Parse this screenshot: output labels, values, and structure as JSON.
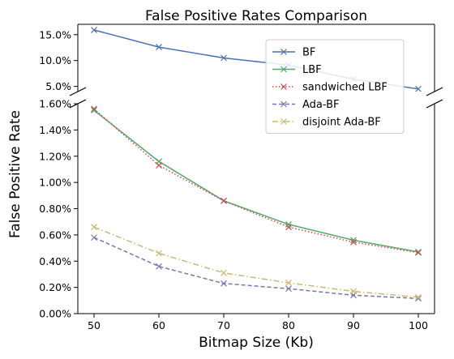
{
  "chart_data": {
    "type": "line",
    "title": "False Positive Rates Comparison",
    "xlabel": "Bitmap Size (Kb)",
    "ylabel": "False Positive Rate",
    "x": [
      50,
      60,
      70,
      80,
      90,
      100
    ],
    "xlim": [
      47.5,
      102.5
    ],
    "x_ticks": [
      "50",
      "60",
      "70",
      "80",
      "90",
      "100"
    ],
    "axis_break": true,
    "upper_ylim": [
      4.0,
      17.0
    ],
    "upper_y_ticks": [
      "5.0%",
      "10.0%",
      "15.0%"
    ],
    "lower_ylim": [
      0.0,
      1.6
    ],
    "lower_y_ticks": [
      "0.00%",
      "0.20%",
      "0.40%",
      "0.60%",
      "0.80%",
      "1.00%",
      "1.20%",
      "1.40%",
      "1.60%"
    ],
    "legend_position": "top-right (upper panel)",
    "series": [
      {
        "name": "BF",
        "values": [
          15.9,
          12.6,
          10.5,
          9.1,
          6.4,
          4.5
        ],
        "color": "#4c72b0",
        "dash": "solid",
        "marker": "x"
      },
      {
        "name": "LBF",
        "values": [
          1.55,
          1.16,
          0.86,
          0.68,
          0.56,
          0.47
        ],
        "color": "#55a868",
        "dash": "solid",
        "marker": "x"
      },
      {
        "name": "sandwiched LBF",
        "values": [
          1.56,
          1.13,
          0.86,
          0.66,
          0.545,
          0.465
        ],
        "color": "#c44e52",
        "dash": "dotted",
        "marker": "x"
      },
      {
        "name": "Ada-BF",
        "values": [
          0.58,
          0.36,
          0.23,
          0.19,
          0.14,
          0.115
        ],
        "color": "#8172b2",
        "dash": "dashed",
        "marker": "x"
      },
      {
        "name": "disjoint Ada-BF",
        "values": [
          0.66,
          0.46,
          0.31,
          0.235,
          0.17,
          0.125
        ],
        "color": "#ccb974",
        "dash": "dashdot",
        "marker": "x"
      }
    ]
  }
}
